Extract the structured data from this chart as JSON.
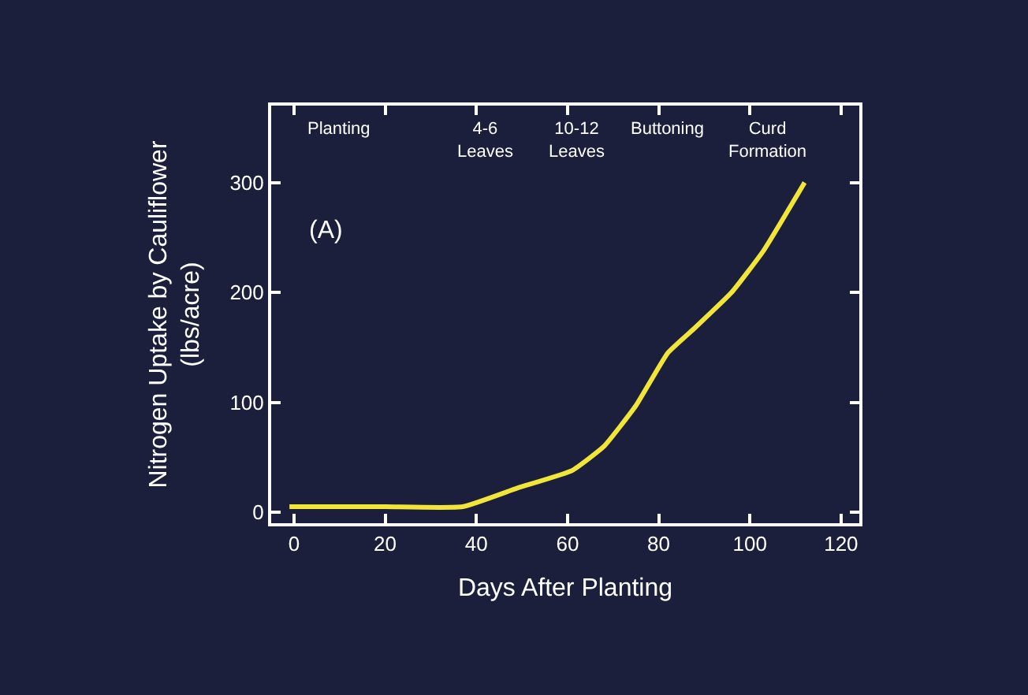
{
  "chart_data": {
    "type": "line",
    "xlabel": "Days After Planting",
    "ylabel": "Nitrogen Uptake by Cauliflower\n(lbs/acre)",
    "x": [
      -1,
      20,
      37,
      49,
      61,
      68,
      75,
      82,
      88,
      96,
      103,
      112
    ],
    "series": [
      {
        "color": "#f2e53a",
        "values": [
          5,
          5,
          5,
          22,
          38,
          60,
          97,
          145,
          168,
          200,
          238,
          300
        ]
      }
    ],
    "xlim": [
      -5,
      124
    ],
    "xticks": [
      0,
      20,
      40,
      60,
      80,
      100,
      120
    ],
    "ylim": [
      -10,
      370
    ],
    "yticks": [
      0,
      100,
      200,
      300
    ],
    "marker": "none",
    "line_style": "solid",
    "annotations": [
      "Planting",
      "4-6\nLeaves",
      "10-12\nLeaves",
      "Buttoning",
      "Curd\nFormation",
      "(A)"
    ]
  }
}
